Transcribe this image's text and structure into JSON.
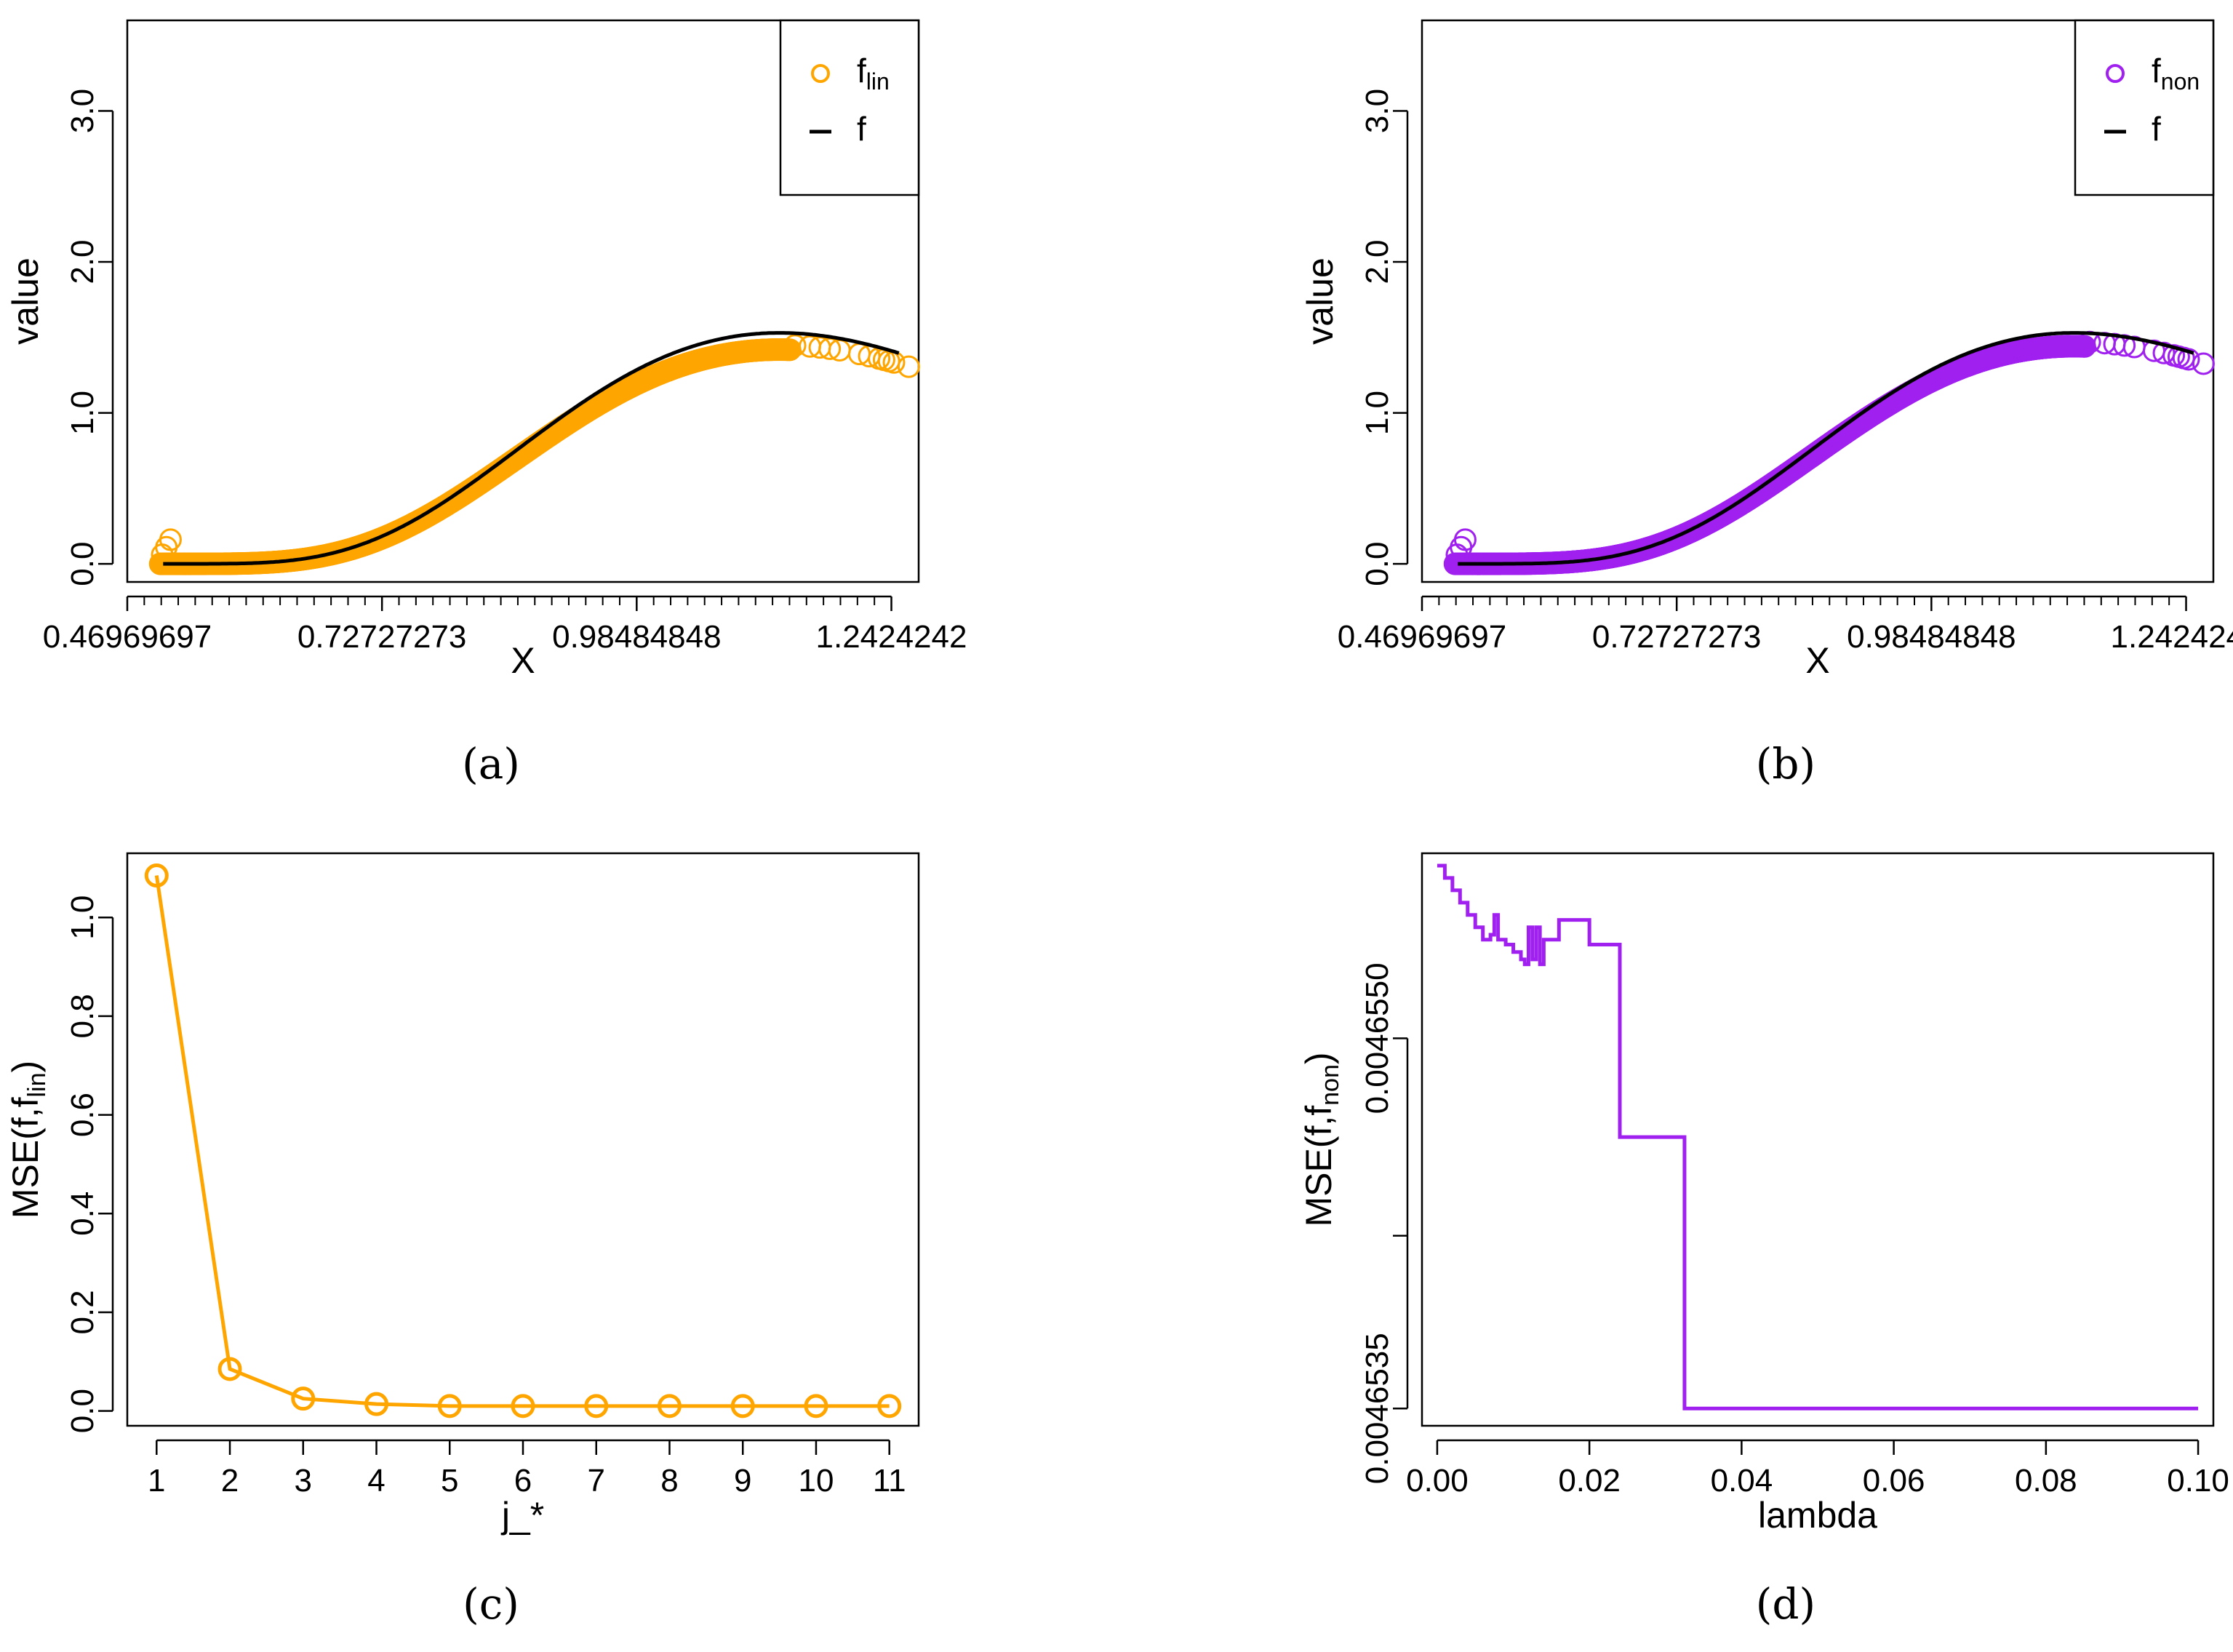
{
  "chart_data": [
    {
      "id": "a",
      "caption": "(a)",
      "type": "scatter",
      "xlabel": "X",
      "ylabel": "value",
      "xlim": [
        0.4697,
        1.27
      ],
      "ylim": [
        -0.12,
        3.6
      ],
      "xticks": [
        0.46969697,
        0.72727273,
        0.98484848,
        1.2424242
      ],
      "xtick_labels": [
        "0.46969697",
        "0.72727273",
        "0.98484848",
        "1.2424242"
      ],
      "yticks": [
        0.0,
        1.0,
        2.0,
        3.0
      ],
      "ytick_labels": [
        "0.0",
        "1.0",
        "2.0",
        "3.0"
      ],
      "legend": {
        "position": "top-right",
        "entries": [
          {
            "symbol": "o",
            "label": "f",
            "sub": "lin",
            "color": "#FFA500"
          },
          {
            "symbol": "—",
            "label": "f",
            "sub": "",
            "color": "#000000"
          }
        ]
      },
      "series": [
        {
          "name": "f_lin",
          "kind": "points",
          "color": "#FFA500",
          "scale": 0.96,
          "x_range": [
            0.5,
            1.25
          ]
        },
        {
          "name": "f",
          "kind": "line",
          "color": "#000000",
          "scale": 1.0,
          "x_range": [
            0.5,
            1.25
          ]
        }
      ],
      "density": {
        "shape": 6.6,
        "rate": 8.9,
        "x0": 0.5
      }
    },
    {
      "id": "b",
      "caption": "(b)",
      "type": "scatter",
      "xlabel": "X",
      "ylabel": "value",
      "xlim": [
        0.4697,
        1.27
      ],
      "ylim": [
        -0.12,
        3.6
      ],
      "xticks": [
        0.46969697,
        0.72727273,
        0.98484848,
        1.2424242
      ],
      "xtick_labels": [
        "0.46969697",
        "0.72727273",
        "0.98484848",
        "1.2424242"
      ],
      "yticks": [
        0.0,
        1.0,
        2.0,
        3.0
      ],
      "ytick_labels": [
        "0.0",
        "1.0",
        "2.0",
        "3.0"
      ],
      "legend": {
        "position": "top-right",
        "entries": [
          {
            "symbol": "o",
            "label": "f",
            "sub": "non",
            "color": "#A020F0"
          },
          {
            "symbol": "—",
            "label": "f",
            "sub": "",
            "color": "#000000"
          }
        ]
      },
      "series": [
        {
          "name": "f_non",
          "kind": "points",
          "color": "#A020F0",
          "scale": 0.975,
          "x_range": [
            0.5,
            1.25
          ]
        },
        {
          "name": "f",
          "kind": "line",
          "color": "#000000",
          "scale": 1.0,
          "x_range": [
            0.5,
            1.25
          ]
        }
      ],
      "density": {
        "shape": 6.6,
        "rate": 8.9,
        "x0": 0.5
      }
    },
    {
      "id": "c",
      "caption": "(c)",
      "type": "line",
      "xlabel": "j_*",
      "ylabel": "MSE(f,f",
      "ylabel_sub": "lin",
      "ylabel_end": ")",
      "xlim": [
        0.6,
        11.4
      ],
      "ylim": [
        -0.03,
        1.13
      ],
      "xticks": [
        1,
        2,
        3,
        4,
        5,
        6,
        7,
        8,
        9,
        10,
        11
      ],
      "xtick_labels": [
        "1",
        "2",
        "3",
        "4",
        "5",
        "6",
        "7",
        "8",
        "9",
        "10",
        "11"
      ],
      "yticks": [
        0.0,
        0.2,
        0.4,
        0.6,
        0.8,
        1.0
      ],
      "ytick_labels": [
        "0.0",
        "0.2",
        "0.4",
        "0.6",
        "0.8",
        "1.0"
      ],
      "series": [
        {
          "name": "MSE(f,f_lin)",
          "color": "#FFA500",
          "x": [
            1,
            2,
            3,
            4,
            5,
            6,
            7,
            8,
            9,
            10,
            11
          ],
          "values": [
            1.085,
            0.085,
            0.025,
            0.014,
            0.01,
            0.01,
            0.01,
            0.01,
            0.01,
            0.01,
            0.01
          ]
        }
      ]
    },
    {
      "id": "d",
      "caption": "(d)",
      "type": "line",
      "xlabel": "lambda",
      "ylabel": "MSE(f,f",
      "ylabel_sub": "non",
      "ylabel_end": ")",
      "xlim": [
        -0.002,
        0.102
      ],
      "ylim": [
        0.00465343,
        0.00465575
      ],
      "xticks": [
        0.0,
        0.02,
        0.04,
        0.06,
        0.08,
        0.1
      ],
      "xtick_labels": [
        "0.00",
        "0.02",
        "0.04",
        "0.06",
        "0.08",
        "0.10"
      ],
      "yticks": [
        0.0046535,
        0.0046542,
        0.004655
      ],
      "ytick_labels": [
        "0.0046535",
        "",
        "0.0046550"
      ],
      "series": [
        {
          "name": "MSE(f,f_non)",
          "color": "#A020F0",
          "step": true,
          "x": [
            0.0,
            0.001,
            0.002,
            0.003,
            0.004,
            0.005,
            0.006,
            0.007,
            0.0075,
            0.008,
            0.009,
            0.01,
            0.011,
            0.0115,
            0.012,
            0.0125,
            0.013,
            0.0135,
            0.014,
            0.015,
            0.016,
            0.017,
            0.02,
            0.024,
            0.0325,
            0.1
          ],
          "values": [
            0.0046557,
            0.00465565,
            0.0046556,
            0.00465555,
            0.0046555,
            0.00465545,
            0.0046554,
            0.00465542,
            0.0046555,
            0.0046554,
            0.00465538,
            0.00465535,
            0.00465532,
            0.0046553,
            0.00465545,
            0.00465532,
            0.00465545,
            0.0046553,
            0.0046554,
            0.0046554,
            0.00465548,
            0.00465548,
            0.00465538,
            0.0046546,
            0.0046535,
            0.0046535
          ]
        }
      ]
    }
  ]
}
